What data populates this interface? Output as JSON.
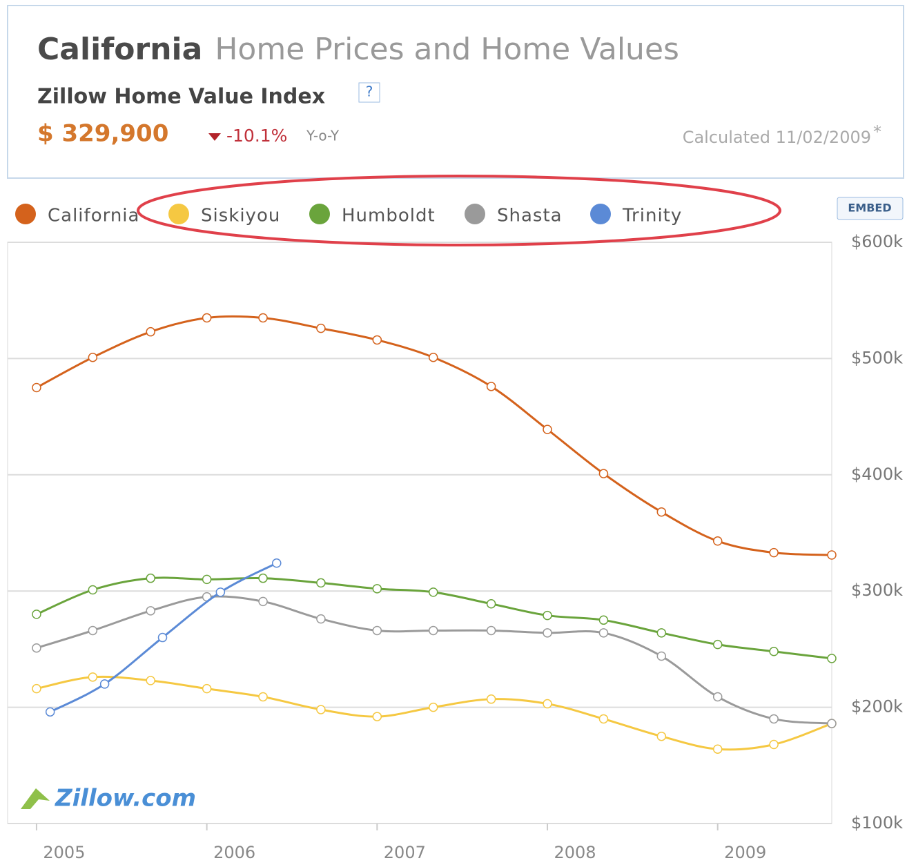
{
  "header": {
    "region": "California",
    "title": "Home Prices and Home Values",
    "index_name": "Zillow Home Value Index",
    "help": "?",
    "value": "$ 329,900",
    "change": "-10.1%",
    "change_unit": "Y-o-Y",
    "calculated": "Calculated 11/02/2009",
    "footnote_mark": "*"
  },
  "embed": "EMBED",
  "logo": "Zillow.com",
  "chart_data": {
    "type": "line",
    "x": [
      2005,
      2005.33,
      2005.67,
      2006,
      2006.33,
      2006.67,
      2007,
      2007.33,
      2007.67,
      2008,
      2008.33,
      2008.67,
      2009,
      2009.33,
      2009.67
    ],
    "xlim": [
      2004.83,
      2009.67
    ],
    "xticks": [
      2005,
      2006,
      2007,
      2008,
      2009
    ],
    "ylim": [
      100,
      600
    ],
    "yticks": [
      {
        "value": 100,
        "label": "$100k"
      },
      {
        "value": 200,
        "label": "$200k"
      },
      {
        "value": 300,
        "label": "$300k"
      },
      {
        "value": 400,
        "label": "$400k"
      },
      {
        "value": 500,
        "label": "$500k"
      },
      {
        "value": 600,
        "label": "$600k"
      }
    ],
    "grid": true,
    "series": [
      {
        "name": "California",
        "color": "#d4621c",
        "values": [
          475,
          501,
          523,
          535,
          535,
          526,
          516,
          501,
          476,
          439,
          401,
          368,
          343,
          333,
          331
        ]
      },
      {
        "name": "Siskiyou",
        "color": "#f5c842",
        "values": [
          216,
          226,
          223,
          216,
          209,
          198,
          192,
          200,
          207,
          203,
          190,
          175,
          164,
          168,
          186
        ]
      },
      {
        "name": "Humboldt",
        "color": "#6aa43c",
        "values": [
          280,
          301,
          311,
          310,
          311,
          307,
          302,
          299,
          289,
          279,
          275,
          264,
          254,
          248,
          242
        ]
      },
      {
        "name": "Shasta",
        "color": "#9a9a9a",
        "values": [
          251,
          266,
          283,
          295,
          291,
          276,
          266,
          266,
          266,
          264,
          264,
          244,
          209,
          190,
          186
        ]
      },
      {
        "name": "Trinity",
        "color": "#5b8ad6",
        "x": [
          2005.08,
          2005.4,
          2005.74,
          2006.08,
          2006.41
        ],
        "values": [
          196,
          220,
          260,
          299,
          324
        ]
      }
    ]
  }
}
